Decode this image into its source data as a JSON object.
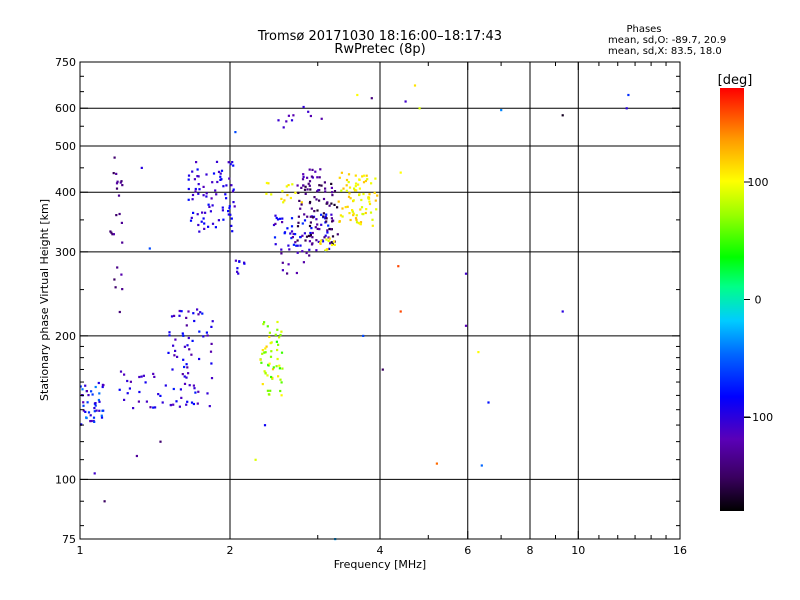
{
  "header": {
    "title_line1": "Tromsø 20171030 18:16:00–18:17:43",
    "title_line2": "RwPretec (8p)",
    "phase_title": "Phases",
    "phase_o": "mean, sd,O: -89.7, 20.9",
    "phase_x": "mean, sd,X: 83.5, 18.0"
  },
  "colorbar": {
    "label": "[deg]",
    "min": -180,
    "max": 180,
    "ticks": [
      {
        "value": 100,
        "label": "100"
      },
      {
        "value": 0,
        "label": "0"
      },
      {
        "value": -100,
        "label": "−100"
      }
    ]
  },
  "chart_data": {
    "type": "scatter",
    "xlabel": "Frequency [MHz]",
    "ylabel": "Stationary phase Virtual Height [km]",
    "xscale": "log",
    "yscale": "log",
    "xlim": [
      1,
      16
    ],
    "ylim": [
      75,
      750
    ],
    "xticks": [
      {
        "value": 1,
        "label": "1"
      },
      {
        "value": 2,
        "label": "2"
      },
      {
        "value": 4,
        "label": "4"
      },
      {
        "value": 6,
        "label": "6"
      },
      {
        "value": 8,
        "label": "8"
      },
      {
        "value": 10,
        "label": "10"
      },
      {
        "value": 16,
        "label": "16"
      }
    ],
    "xminor": [
      3,
      5,
      7,
      9,
      11,
      12,
      13,
      14,
      15
    ],
    "xgrid": [
      2,
      4,
      6,
      8,
      10
    ],
    "yticks": [
      {
        "value": 75,
        "label": "75"
      },
      {
        "value": 100,
        "label": "100"
      },
      {
        "value": 200,
        "label": "200"
      },
      {
        "value": 300,
        "label": "300"
      },
      {
        "value": 400,
        "label": "400"
      },
      {
        "value": 500,
        "label": "500"
      },
      {
        "value": 600,
        "label": "600"
      },
      {
        "value": 750,
        "label": "750"
      }
    ],
    "yminor": [
      80,
      90,
      110,
      120,
      130,
      140,
      150,
      160,
      170,
      180,
      190,
      250,
      350,
      450,
      550,
      650,
      700
    ],
    "ygrid": [
      100,
      200,
      300,
      400,
      500,
      600
    ],
    "grid": true,
    "point_color": "phase [deg]",
    "clusters": [
      {
        "x": [
          1.0,
          1.12
        ],
        "y": [
          130,
          160
        ],
        "phase": [
          -125,
          -40
        ],
        "n": 45
      },
      {
        "x": [
          1.15,
          1.22
        ],
        "y": [
          310,
          500
        ],
        "phase": [
          -155,
          -125
        ],
        "n": 18
      },
      {
        "x": [
          1.15,
          1.22
        ],
        "y": [
          200,
          290
        ],
        "phase": [
          -150,
          -120
        ],
        "n": 6
      },
      {
        "x": [
          1.2,
          1.5
        ],
        "y": [
          140,
          170
        ],
        "phase": [
          -125,
          -80
        ],
        "n": 25
      },
      {
        "x": [
          1.5,
          1.85
        ],
        "y": [
          140,
          230
        ],
        "phase": [
          -130,
          -75
        ],
        "n": 70
      },
      {
        "x": [
          1.65,
          2.05
        ],
        "y": [
          330,
          470
        ],
        "phase": [
          -120,
          -80
        ],
        "n": 80
      },
      {
        "x": [
          2.0,
          2.15
        ],
        "y": [
          270,
          290
        ],
        "phase": [
          -115,
          -85
        ],
        "n": 8
      },
      {
        "x": [
          2.3,
          2.55
        ],
        "y": [
          150,
          215
        ],
        "phase": [
          40,
          120
        ],
        "n": 55
      },
      {
        "x": [
          2.35,
          2.8
        ],
        "y": [
          380,
          420
        ],
        "phase": [
          85,
          125
        ],
        "n": 15
      },
      {
        "x": [
          2.45,
          3.2
        ],
        "y": [
          300,
          360
        ],
        "phase": [
          -125,
          -70
        ],
        "n": 60
      },
      {
        "x": [
          2.7,
          3.3
        ],
        "y": [
          310,
          420
        ],
        "phase": [
          -170,
          -120
        ],
        "n": 85
      },
      {
        "x": [
          2.5,
          2.9
        ],
        "y": [
          270,
          300
        ],
        "phase": [
          -140,
          -110
        ],
        "n": 10
      },
      {
        "x": [
          2.8,
          3.1
        ],
        "y": [
          400,
          450
        ],
        "phase": [
          -140,
          -110
        ],
        "n": 15
      },
      {
        "x": [
          3.0,
          3.25
        ],
        "y": [
          300,
          320
        ],
        "phase": [
          90,
          120
        ],
        "n": 12
      },
      {
        "x": [
          3.3,
          3.95
        ],
        "y": [
          340,
          440
        ],
        "phase": [
          85,
          125
        ],
        "n": 80
      },
      {
        "x": [
          2.5,
          3.1
        ],
        "y": [
          525,
          605
        ],
        "phase": [
          -130,
          -100
        ],
        "n": 10
      }
    ],
    "isolated_points": [
      {
        "x": 1.12,
        "y": 90,
        "phase": -150
      },
      {
        "x": 1.07,
        "y": 103,
        "phase": -110
      },
      {
        "x": 1.3,
        "y": 112,
        "phase": -130
      },
      {
        "x": 1.45,
        "y": 120,
        "phase": -145
      },
      {
        "x": 1.38,
        "y": 305,
        "phase": -60
      },
      {
        "x": 1.33,
        "y": 450,
        "phase": -100
      },
      {
        "x": 1.65,
        "y": 225,
        "phase": -120
      },
      {
        "x": 2.05,
        "y": 535,
        "phase": -60
      },
      {
        "x": 2.25,
        "y": 110,
        "phase": 90
      },
      {
        "x": 2.35,
        "y": 130,
        "phase": -90
      },
      {
        "x": 3.25,
        "y": 75,
        "phase": -30
      },
      {
        "x": 3.6,
        "y": 640,
        "phase": 100
      },
      {
        "x": 3.85,
        "y": 630,
        "phase": -140
      },
      {
        "x": 3.7,
        "y": 200,
        "phase": -60
      },
      {
        "x": 4.05,
        "y": 170,
        "phase": -150
      },
      {
        "x": 4.35,
        "y": 280,
        "phase": 160
      },
      {
        "x": 4.4,
        "y": 225,
        "phase": 160
      },
      {
        "x": 4.4,
        "y": 440,
        "phase": 100
      },
      {
        "x": 4.5,
        "y": 620,
        "phase": -110
      },
      {
        "x": 4.7,
        "y": 670,
        "phase": 110
      },
      {
        "x": 4.8,
        "y": 600,
        "phase": 90
      },
      {
        "x": 5.2,
        "y": 108,
        "phase": 150
      },
      {
        "x": 5.95,
        "y": 210,
        "phase": -120
      },
      {
        "x": 5.95,
        "y": 270,
        "phase": -110
      },
      {
        "x": 6.3,
        "y": 185,
        "phase": 100
      },
      {
        "x": 6.4,
        "y": 107,
        "phase": -50
      },
      {
        "x": 6.6,
        "y": 145,
        "phase": -80
      },
      {
        "x": 7.0,
        "y": 595,
        "phase": -40
      },
      {
        "x": 9.3,
        "y": 580,
        "phase": -170
      },
      {
        "x": 9.3,
        "y": 225,
        "phase": -100
      },
      {
        "x": 12.5,
        "y": 600,
        "phase": -100
      },
      {
        "x": 12.6,
        "y": 640,
        "phase": -70
      }
    ]
  }
}
